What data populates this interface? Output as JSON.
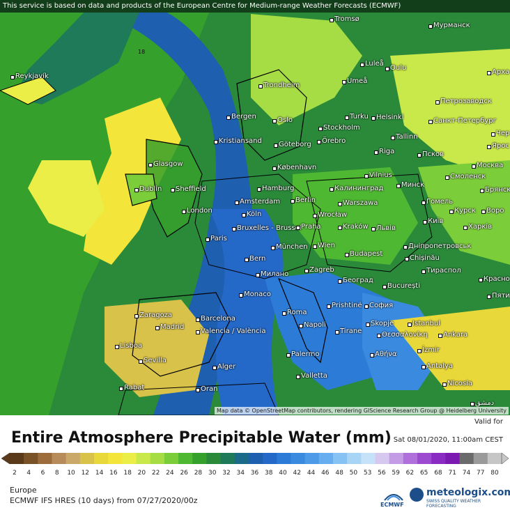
{
  "map": {
    "notice": "This service is based on data and products of the European Centre for Medium-range Weather Forecasts (ECMWF)",
    "attribution": "Map data © OpenStreetMap contributors, rendering GIScience Research Group @ Heidelberg University",
    "colors": {
      "ocean": "#1f62c4",
      "land_high": "#33a02c",
      "land_low": "#f3e53a",
      "mid": "#9bd94b",
      "deep": "#2c7bd6"
    },
    "cities": [
      "Tromsø",
      "Мурманск",
      "Luleå",
      "Oulu",
      "Арха",
      "Reykjavík",
      "Trondheim",
      "Umeå",
      "Петрозаводск",
      "Bergen",
      "Oslo",
      "Turku",
      "Helsinki",
      "Санкт-Петербург",
      "Чер",
      "Stockholm",
      "Kristiansand",
      "Göteborg",
      "Örebro",
      "Tallinn",
      "Псков",
      "Ярос",
      "Riga",
      "Glasgow",
      "København",
      "Москва",
      "Dublin",
      "Sheffield",
      "Hamburg",
      "Vilnius",
      "Калининград",
      "Минск",
      "Смоленск",
      "Брянск",
      "Amsterdam",
      "Berlin",
      "Warszawa",
      "Гомель",
      "Курск",
      "Воро",
      "London",
      "Köln",
      "Wrocław",
      "Bruxelles - Brussel",
      "Paris",
      "Praha",
      "Kraków",
      "Львів",
      "Київ",
      "Харків",
      "München",
      "Wien",
      "Дніпропетровськ",
      "Bern",
      "Budapest",
      "Chișinău",
      "Милано",
      "Zagreb",
      "Тираспол",
      "Красно",
      "Monaco",
      "Београд",
      "București",
      "Пяти",
      "Zaragoza",
      "Barcelona",
      "Roma",
      "Prishtinë",
      "София",
      "Madrid",
      "Napoli",
      "Skopje",
      "Istanbul",
      "Valencia / València",
      "Tirane",
      "Θεσσαλονίκη",
      "Ankara",
      "Lisboa",
      "Sevilla",
      "Palermo",
      "Αθήνα",
      "İzmir",
      "Antalya",
      "Alger",
      "Valletta",
      "Rabat",
      "Oran",
      "Nicosia",
      "دمشق"
    ],
    "contour_label": "18"
  },
  "footer": {
    "title": "Entire Atmosphere Precipitable Water (mm)",
    "valid_label": "Valid for",
    "valid_time": "Sat 08/01/2020, 11:00am CEST",
    "region": "Europe",
    "model": "ECMWF IFS HRES (10 days) from 07/27/2020/00z",
    "ecmwf_logo": "ECMWF",
    "brand": "meteologix.com",
    "brand_sub": "SWISS QUALITY WEATHER FORECASTING"
  },
  "scale": {
    "ticks": [
      "2",
      "4",
      "6",
      "8",
      "10",
      "12",
      "14",
      "16",
      "18",
      "20",
      "22",
      "24",
      "26",
      "28",
      "30",
      "32",
      "34",
      "36",
      "38",
      "40",
      "42",
      "44",
      "46",
      "48",
      "50",
      "53",
      "56",
      "59",
      "62",
      "65",
      "68",
      "71",
      "74",
      "77",
      "80"
    ],
    "colors": [
      "#5a3a1a",
      "#7a5228",
      "#9c6c3a",
      "#b88c5a",
      "#c9a86a",
      "#d9c24a",
      "#e8d83a",
      "#f3e53a",
      "#ecee48",
      "#c9e84a",
      "#a6dc44",
      "#7ccd3a",
      "#4fb832",
      "#36a02c",
      "#2a8a3a",
      "#1f7a5a",
      "#1c6a8a",
      "#1e5fb0",
      "#2468c8",
      "#2c7bd6",
      "#3a8ae0",
      "#4d9ae8",
      "#66aef0",
      "#86c2f4",
      "#a8d4f6",
      "#c6e2f8",
      "#d7c8f0",
      "#c49ce6",
      "#b070dc",
      "#9c4ad0",
      "#8a2cc4",
      "#7a1ab0",
      "#6a6a6a",
      "#9a9a9a",
      "#c6c6c6"
    ]
  }
}
